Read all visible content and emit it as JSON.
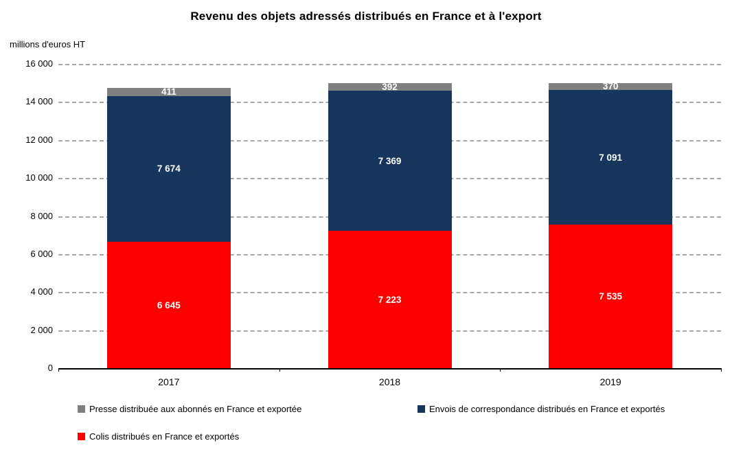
{
  "title": "Revenu des objets adressés distribués en France et à l'export",
  "unit_label": "millions d'euros HT",
  "chart_data": {
    "type": "bar",
    "stacked": true,
    "title": "Revenu des objets adressés distribués en France et à l'export",
    "ylabel": "millions d'euros HT",
    "xlabel": "",
    "categories": [
      "2017",
      "2018",
      "2019"
    ],
    "series": [
      {
        "name": "Colis distribués en France et exportés",
        "color": "#FF0000",
        "values": [
          6645,
          7223,
          7535
        ],
        "labels": [
          "6 645",
          "7 223",
          "7 535"
        ]
      },
      {
        "name": "Envois de correspondance distribués en France et exportés",
        "color": "#17365D",
        "values": [
          7674,
          7369,
          7091
        ],
        "labels": [
          "7 674",
          "7 369",
          "7 091"
        ]
      },
      {
        "name": "Presse distribuée aux abonnés en France et exportée",
        "color": "#808080",
        "values": [
          411,
          392,
          370
        ],
        "labels": [
          "411",
          "392",
          "370"
        ]
      }
    ],
    "ylim": [
      0,
      16000
    ],
    "ytick_step": 2000,
    "yticks": [
      "0",
      "2 000",
      "4 000",
      "6 000",
      "8 000",
      "10 000",
      "12 000",
      "14 000",
      "16 000"
    ],
    "grid": "horizontal dashed",
    "grid_color": "#A6A6A6",
    "value_label_color": "#FFFFFF",
    "legend_position": "bottom"
  },
  "legend": {
    "items": [
      {
        "label": "Presse distribuée aux abonnés en France et exportée",
        "color": "#808080"
      },
      {
        "label": "Envois de correspondance distribués en France et exportés",
        "color": "#17365D"
      },
      {
        "label": "Colis distribués en France et exportés",
        "color": "#FF0000"
      }
    ]
  }
}
